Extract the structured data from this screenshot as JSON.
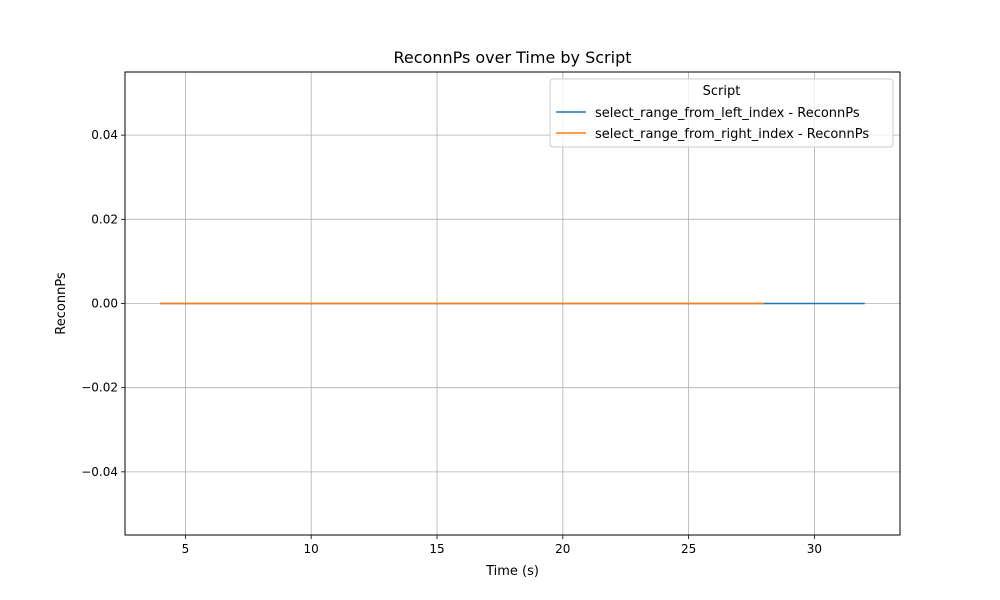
{
  "chart_data": {
    "type": "line",
    "title": "ReconnPs over Time by Script",
    "xlabel": "Time (s)",
    "ylabel": "ReconnPs",
    "xlim": [
      2.6,
      33.4
    ],
    "ylim": [
      -0.055,
      0.055
    ],
    "x_ticks": [
      5,
      10,
      15,
      20,
      25,
      30
    ],
    "x_tick_labels": [
      "5",
      "10",
      "15",
      "20",
      "25",
      "30"
    ],
    "y_ticks": [
      0.04,
      0.02,
      0.0,
      -0.02,
      -0.04
    ],
    "y_tick_labels": [
      "0.04",
      "0.02",
      "0.00",
      "−0.02",
      "−0.04"
    ],
    "grid": true,
    "legend": {
      "title": "Script",
      "placement": "top-right"
    },
    "series": [
      {
        "name": "select_range_from_left_index - ReconnPs",
        "color": "#1f77b4",
        "x": [
          4,
          8,
          12,
          16,
          20,
          24,
          28,
          32
        ],
        "y": [
          0,
          0,
          0,
          0,
          0,
          0,
          0,
          0
        ]
      },
      {
        "name": "select_range_from_right_index - ReconnPs",
        "color": "#ff7f0e",
        "x": [
          4,
          8,
          12,
          16,
          20,
          24,
          28
        ],
        "y": [
          0,
          0,
          0,
          0,
          0,
          0,
          0
        ]
      }
    ]
  }
}
